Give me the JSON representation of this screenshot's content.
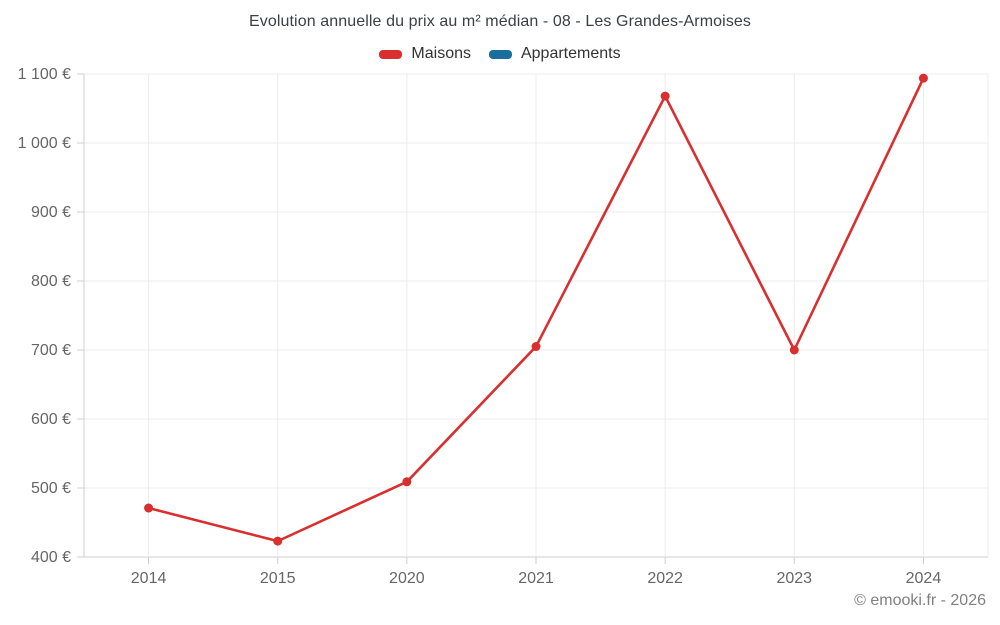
{
  "chart": {
    "footer_credit": "© emooki.fr - 2026"
  },
  "chart_data": {
    "type": "line",
    "title": "Evolution annuelle du prix au m² médian - 08 - Les Grandes-Armoises",
    "categories": [
      "2014",
      "2015",
      "2020",
      "2021",
      "2022",
      "2023",
      "2024"
    ],
    "series": [
      {
        "name": "Maisons",
        "color": "#d92f2f",
        "values": [
          471,
          423,
          509,
          705,
          1068,
          700,
          1094
        ]
      },
      {
        "name": "Appartements",
        "color": "#1a6e9e",
        "values": []
      }
    ],
    "xlabel": "",
    "ylabel": "",
    "ylim": [
      400,
      1100
    ],
    "ytick_step": 100,
    "ytick_labels": [
      "400 €",
      "500 €",
      "600 €",
      "700 €",
      "800 €",
      "900 €",
      "1 000 €",
      "1 100 €"
    ],
    "grid": true,
    "legend_position": "top",
    "axis_label_color": "#666666",
    "grid_color": "#ececec",
    "axis_line_color": "#cfcfcf"
  }
}
